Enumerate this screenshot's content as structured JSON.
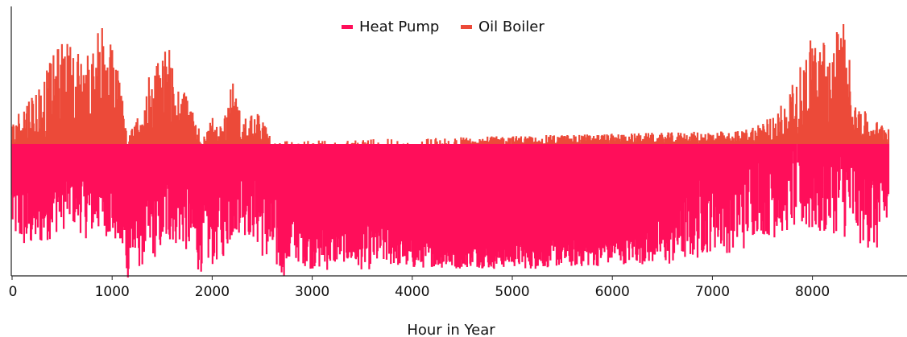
{
  "chart_data": {
    "type": "area",
    "title": "",
    "xlabel": "Hour in Year",
    "ylabel": "",
    "xlim": [
      0,
      8760
    ],
    "ylim": [
      -1.0,
      1.0
    ],
    "grid": false,
    "legend_position": "top-center",
    "x_ticks": [
      "0",
      "1000",
      "2000",
      "3000",
      "4000",
      "5000",
      "6000",
      "7000",
      "8000"
    ],
    "series": [
      {
        "name": "Heat Pump",
        "color": "#ff0e5a",
        "note_direction": "below zero",
        "x": [
          0,
          150,
          300,
          450,
          600,
          750,
          900,
          1050,
          1150,
          1300,
          1450,
          1600,
          1750,
          1850,
          2000,
          2100,
          2250,
          2400,
          2550,
          2700,
          2850,
          3000,
          3150,
          3300,
          3450,
          3600,
          3750,
          3900,
          4000,
          4200,
          4400,
          4600,
          4800,
          5000,
          5200,
          5400,
          5600,
          5800,
          6000,
          6200,
          6400,
          6550,
          6700,
          6850,
          7000,
          7150,
          7300,
          7450,
          7600,
          7750,
          7900,
          8050,
          8200,
          8350,
          8500,
          8650,
          8760
        ],
        "values": [
          -0.45,
          -0.55,
          -0.5,
          -0.4,
          -0.35,
          -0.45,
          -0.4,
          -0.5,
          -0.7,
          -0.6,
          -0.55,
          -0.45,
          -0.5,
          -0.65,
          -0.6,
          -0.55,
          -0.35,
          -0.4,
          -0.6,
          -0.7,
          -0.65,
          -0.72,
          -0.75,
          -0.72,
          -0.78,
          -0.74,
          -0.7,
          -0.78,
          -0.8,
          -0.8,
          -0.82,
          -0.8,
          -0.82,
          -0.8,
          -0.82,
          -0.8,
          -0.8,
          -0.78,
          -0.76,
          -0.74,
          -0.72,
          -0.7,
          -0.62,
          -0.55,
          -0.48,
          -0.5,
          -0.45,
          -0.3,
          -0.35,
          -0.3,
          -0.3,
          -0.35,
          -0.3,
          -0.35,
          -0.4,
          -0.5,
          -0.4
        ],
        "jitter": [
          0.25,
          0.25,
          0.25,
          0.25,
          0.25,
          0.25,
          0.25,
          0.25,
          0.3,
          0.3,
          0.28,
          0.28,
          0.3,
          0.3,
          0.3,
          0.3,
          0.3,
          0.3,
          0.3,
          0.28,
          0.22,
          0.2,
          0.18,
          0.14,
          0.14,
          0.18,
          0.2,
          0.12,
          0.12,
          0.1,
          0.1,
          0.1,
          0.1,
          0.1,
          0.1,
          0.1,
          0.1,
          0.12,
          0.12,
          0.14,
          0.16,
          0.2,
          0.25,
          0.3,
          0.3,
          0.3,
          0.35,
          0.35,
          0.35,
          0.35,
          0.35,
          0.35,
          0.35,
          0.35,
          0.35,
          0.3,
          0.25
        ]
      },
      {
        "name": "Oil Boiler",
        "color": "#ec4a39",
        "note_direction": "above zero",
        "x": [
          0,
          100,
          200,
          300,
          400,
          500,
          600,
          700,
          800,
          900,
          1000,
          1100,
          1150,
          1300,
          1400,
          1500,
          1600,
          1700,
          1800,
          1900,
          2000,
          2100,
          2200,
          2300,
          2400,
          2500,
          2600,
          7300,
          7500,
          7650,
          7800,
          7900,
          8000,
          8100,
          8200,
          8300,
          8400,
          8500,
          8600,
          8760
        ],
        "values": [
          0.05,
          0.15,
          0.2,
          0.25,
          0.35,
          0.5,
          0.45,
          0.4,
          0.35,
          0.6,
          0.45,
          0.25,
          0.0,
          0.15,
          0.35,
          0.45,
          0.5,
          0.3,
          0.15,
          0.0,
          0.1,
          0.05,
          0.3,
          0.08,
          0.15,
          0.1,
          0.0,
          0.05,
          0.1,
          0.15,
          0.25,
          0.35,
          0.55,
          0.5,
          0.45,
          0.7,
          0.3,
          0.15,
          0.1,
          0.08
        ],
        "jitter": [
          0.1,
          0.15,
          0.2,
          0.25,
          0.3,
          0.3,
          0.3,
          0.3,
          0.35,
          0.35,
          0.3,
          0.2,
          0.05,
          0.15,
          0.25,
          0.3,
          0.3,
          0.2,
          0.1,
          0.05,
          0.1,
          0.1,
          0.2,
          0.1,
          0.12,
          0.1,
          0.02,
          0.05,
          0.08,
          0.12,
          0.2,
          0.3,
          0.3,
          0.3,
          0.3,
          0.3,
          0.2,
          0.12,
          0.08,
          0.08
        ]
      }
    ]
  }
}
